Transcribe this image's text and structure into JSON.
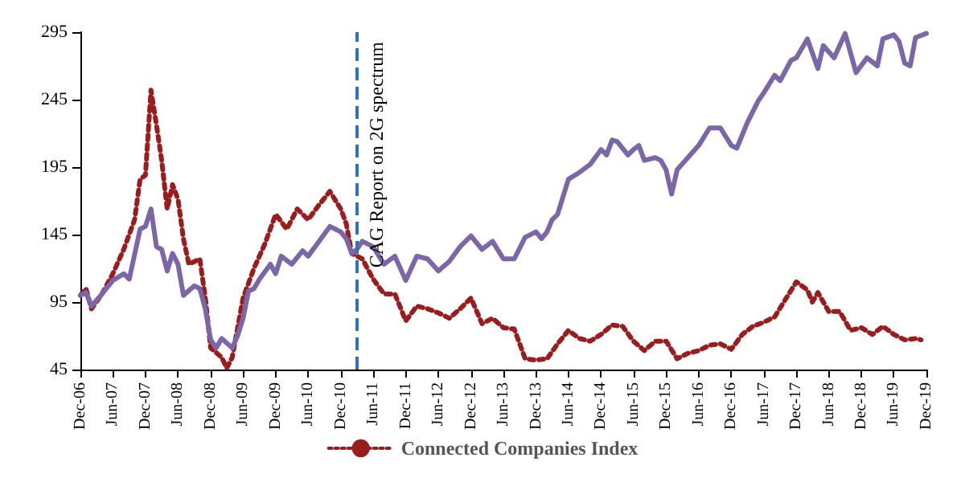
{
  "chart_data": {
    "type": "line",
    "xlim": [
      "2006-12",
      "2019-12"
    ],
    "ylim": [
      45,
      295
    ],
    "yticks": [
      45,
      95,
      145,
      195,
      245,
      295
    ],
    "xticks": [
      {
        "value": "2006-12",
        "label": "Dec-06"
      },
      {
        "value": "2007-06",
        "label": "Jun-07"
      },
      {
        "value": "2007-12",
        "label": "Dec-07"
      },
      {
        "value": "2008-06",
        "label": "Jun-08"
      },
      {
        "value": "2008-12",
        "label": "Dec-08"
      },
      {
        "value": "2009-06",
        "label": "Jun-09"
      },
      {
        "value": "2009-12",
        "label": "Dec-09"
      },
      {
        "value": "2010-06",
        "label": "Jun-10"
      },
      {
        "value": "2010-12",
        "label": "Dec-10"
      },
      {
        "value": "2011-06",
        "label": "Jun-11"
      },
      {
        "value": "2011-12",
        "label": "Dec-11"
      },
      {
        "value": "2012-06",
        "label": "Jun-12"
      },
      {
        "value": "2012-12",
        "label": "Dec-12"
      },
      {
        "value": "2013-06",
        "label": "Jun-13"
      },
      {
        "value": "2013-12",
        "label": "Dec-13"
      },
      {
        "value": "2014-06",
        "label": "Jun-14"
      },
      {
        "value": "2014-12",
        "label": "Dec-14"
      },
      {
        "value": "2015-06",
        "label": "Jun-15"
      },
      {
        "value": "2015-12",
        "label": "Dec-15"
      },
      {
        "value": "2016-06",
        "label": "Jun-16"
      },
      {
        "value": "2016-12",
        "label": "Dec-16"
      },
      {
        "value": "2017-06",
        "label": "Jun-17"
      },
      {
        "value": "2017-12",
        "label": "Dec-17"
      },
      {
        "value": "2018-06",
        "label": "Jun-18"
      },
      {
        "value": "2018-12",
        "label": "Dec-18"
      },
      {
        "value": "2019-06",
        "label": "Jun-19"
      },
      {
        "value": "2019-12",
        "label": "Dec-19"
      }
    ],
    "grid": false,
    "legend": "bottom",
    "marker": "none",
    "ref_lines": [
      {
        "axis": "x",
        "value": "2011-03",
        "label": "CAG Report on 2G spectrum",
        "color": "#2e75b6",
        "line_style": "dashed"
      }
    ],
    "series": [
      {
        "name": "Connected Companies Index",
        "color": "#9b1c1c",
        "line_style": "dotted",
        "x": [
          "2006-12",
          "2007-01",
          "2007-02",
          "2007-04",
          "2007-06",
          "2007-08",
          "2007-10",
          "2007-11",
          "2007-12",
          "2008-01",
          "2008-02",
          "2008-03",
          "2008-04",
          "2008-05",
          "2008-06",
          "2008-07",
          "2008-08",
          "2008-10",
          "2008-11",
          "2008-12",
          "2009-02",
          "2009-03",
          "2009-04",
          "2009-06",
          "2009-08",
          "2009-10",
          "2009-12",
          "2010-02",
          "2010-04",
          "2010-06",
          "2010-08",
          "2010-10",
          "2010-12",
          "2011-01",
          "2011-02",
          "2011-04",
          "2011-06",
          "2011-08",
          "2011-10",
          "2011-12",
          "2012-02",
          "2012-04",
          "2012-06",
          "2012-08",
          "2012-10",
          "2012-12",
          "2013-02",
          "2013-04",
          "2013-06",
          "2013-08",
          "2013-10",
          "2013-12",
          "2014-02",
          "2014-04",
          "2014-06",
          "2014-08",
          "2014-10",
          "2014-12",
          "2015-02",
          "2015-04",
          "2015-06",
          "2015-08",
          "2015-10",
          "2015-12",
          "2016-02",
          "2016-04",
          "2016-06",
          "2016-08",
          "2016-10",
          "2016-12",
          "2017-02",
          "2017-04",
          "2017-06",
          "2017-08",
          "2017-10",
          "2017-12",
          "2018-02",
          "2018-03",
          "2018-04",
          "2018-06",
          "2018-08",
          "2018-10",
          "2018-12",
          "2019-02",
          "2019-04",
          "2019-06",
          "2019-08",
          "2019-10",
          "2019-11"
        ],
        "values": [
          100,
          105,
          90,
          101,
          116,
          134,
          156,
          186,
          189,
          252,
          226,
          200,
          164,
          182,
          171,
          142,
          123,
          127,
          98,
          61,
          54,
          46,
          54,
          98,
          120,
          138,
          160,
          149,
          164,
          156,
          167,
          177,
          164,
          153,
          131,
          127,
          112,
          101,
          101,
          81,
          92,
          90,
          87,
          83,
          90,
          98,
          79,
          83,
          76,
          75,
          53,
          52,
          53,
          64,
          74,
          68,
          66,
          71,
          78,
          77,
          66,
          59,
          66,
          66,
          53,
          57,
          59,
          63,
          64,
          60,
          71,
          77,
          80,
          84,
          97,
          110,
          104,
          95,
          102,
          88,
          88,
          74,
          76,
          71,
          77,
          71,
          67,
          68,
          67
        ]
      },
      {
        "color": "#7a66a8",
        "line_style": "solid",
        "x": [
          "2006-12",
          "2007-01",
          "2007-02",
          "2007-04",
          "2007-06",
          "2007-08",
          "2007-09",
          "2007-11",
          "2007-12",
          "2008-01",
          "2008-02",
          "2008-03",
          "2008-04",
          "2008-05",
          "2008-06",
          "2008-07",
          "2008-09",
          "2008-10",
          "2008-11",
          "2008-12",
          "2009-01",
          "2009-02",
          "2009-04",
          "2009-05",
          "2009-06",
          "2009-07",
          "2009-08",
          "2009-09",
          "2009-11",
          "2009-12",
          "2010-01",
          "2010-03",
          "2010-05",
          "2010-06",
          "2010-08",
          "2010-10",
          "2010-11",
          "2010-12",
          "2011-01",
          "2011-02",
          "2011-03",
          "2011-04",
          "2011-06",
          "2011-08",
          "2011-10",
          "2011-12",
          "2012-02",
          "2012-04",
          "2012-06",
          "2012-08",
          "2012-10",
          "2012-12",
          "2013-02",
          "2013-04",
          "2013-06",
          "2013-08",
          "2013-10",
          "2013-12",
          "2014-01",
          "2014-02",
          "2014-03",
          "2014-04",
          "2014-06",
          "2014-08",
          "2014-10",
          "2014-12",
          "2015-01",
          "2015-02",
          "2015-03",
          "2015-05",
          "2015-06",
          "2015-07",
          "2015-08",
          "2015-10",
          "2015-11",
          "2015-12",
          "2016-01",
          "2016-02",
          "2016-04",
          "2016-06",
          "2016-08",
          "2016-10",
          "2016-12",
          "2017-01",
          "2017-03",
          "2017-05",
          "2017-06",
          "2017-08",
          "2017-09",
          "2017-11",
          "2017-12",
          "2018-02",
          "2018-04",
          "2018-05",
          "2018-07",
          "2018-09",
          "2018-11",
          "2019-01",
          "2019-03",
          "2019-04",
          "2019-06",
          "2019-07",
          "2019-08",
          "2019-09",
          "2019-10",
          "2019-12"
        ],
        "values": [
          100,
          102,
          92,
          101,
          111,
          116,
          112,
          149,
          151,
          164,
          136,
          134,
          118,
          131,
          123,
          100,
          107,
          105,
          90,
          67,
          61,
          68,
          61,
          70,
          83,
          103,
          105,
          112,
          123,
          116,
          129,
          123,
          133,
          129,
          140,
          151,
          149,
          147,
          142,
          131,
          134,
          140,
          136,
          123,
          129,
          111,
          129,
          127,
          118,
          125,
          136,
          144,
          134,
          140,
          127,
          127,
          143,
          147,
          142,
          147,
          156,
          160,
          186,
          191,
          197,
          208,
          204,
          215,
          214,
          204,
          208,
          211,
          200,
          202,
          200,
          193,
          175,
          193,
          202,
          211,
          224,
          224,
          211,
          209,
          228,
          244,
          250,
          263,
          259,
          274,
          276,
          290,
          268,
          285,
          276,
          294,
          265,
          276,
          270,
          290,
          293,
          288,
          272,
          270,
          291,
          294
        ]
      }
    ]
  }
}
